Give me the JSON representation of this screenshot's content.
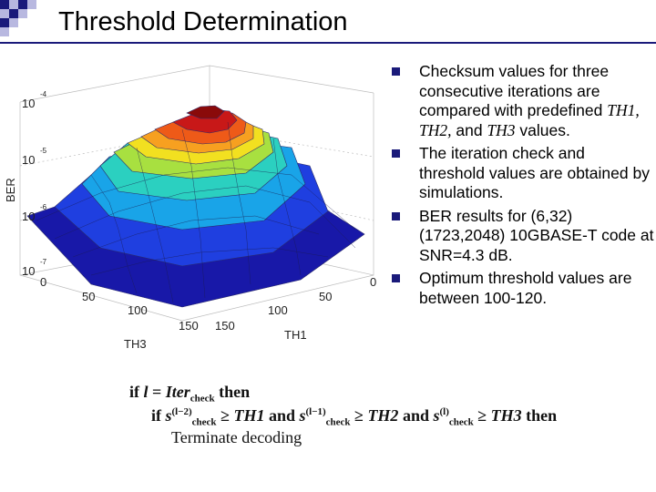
{
  "slide": {
    "title": "Threshold Determination",
    "colors": {
      "accent": "#1a1a7a",
      "deco_light": "#b8b8e0"
    }
  },
  "plot": {
    "zlabel": "BER",
    "xlabel": "TH3",
    "ylabel": "TH1",
    "z_ticks": [
      "10",
      "10",
      "10",
      "10"
    ],
    "z_tick_exps": [
      "-4",
      "-5",
      "-6",
      "-7"
    ],
    "th3_ticks": [
      "0",
      "50",
      "100",
      "150"
    ],
    "th1_ticks": [
      "150",
      "100",
      "50",
      "0"
    ]
  },
  "bullets": [
    {
      "text_a": "Checksum values for three consecutive iterations are compared with predefined ",
      "text_em": "TH1, TH2,",
      "text_b": " and ",
      "text_em2": "TH3",
      "text_c": " values."
    },
    {
      "text_a": "The iteration check and threshold values are obtained by simulations."
    },
    {
      "text_a": "BER results for (6,32) (1723,2048) 10GBASE-T code at SNR=4.3 dB."
    },
    {
      "text_a": "Optimum threshold values are between 100-120."
    }
  ],
  "formula": {
    "line1_if": "if",
    "line1_l": "l",
    "line1_eq": "=",
    "line1_iter": "Iter",
    "line1_sub": "check",
    "line1_then": "then",
    "line2_if": "if",
    "s_label": "s",
    "sub_check": "check",
    "sup_1": "(l−2)",
    "sup_2": "(l−1)",
    "sup_3": "(l)",
    "geq": "≥",
    "th1": "TH1",
    "th2": "TH2",
    "th3": "TH3",
    "and": "and",
    "then": "then",
    "line3": "Terminate decoding"
  }
}
